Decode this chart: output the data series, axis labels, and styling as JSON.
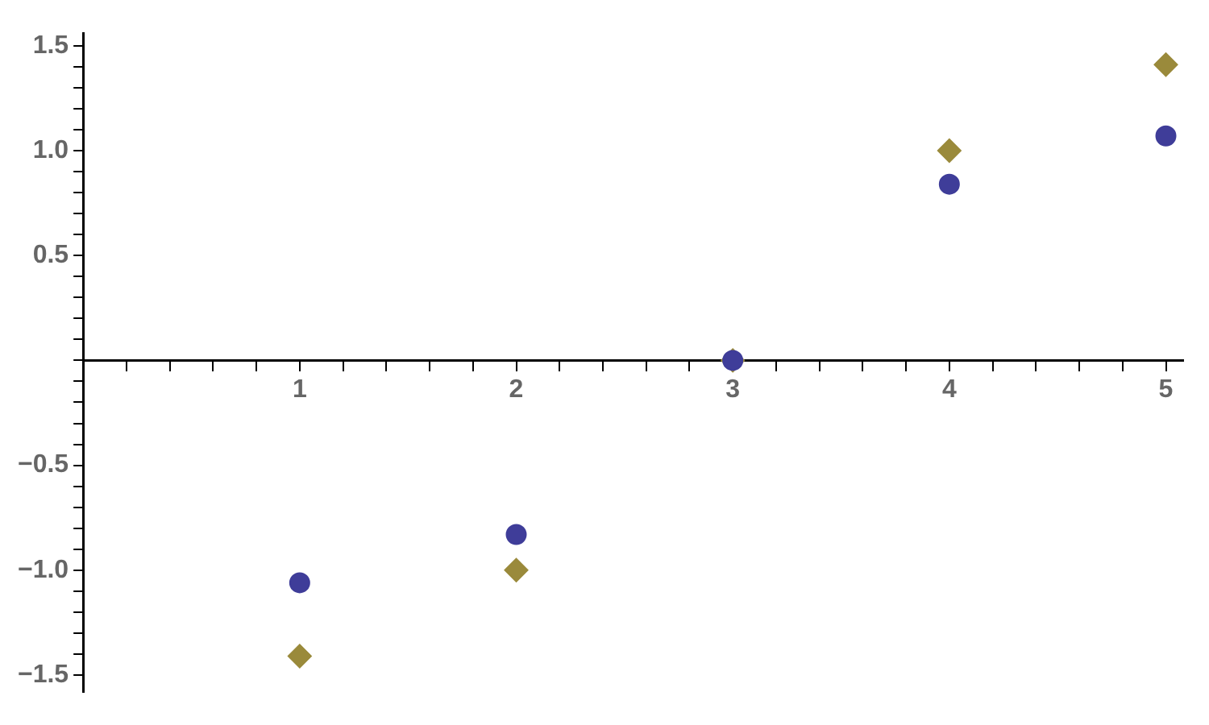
{
  "chart_data": {
    "type": "scatter",
    "x": [
      1,
      2,
      3,
      4,
      5
    ],
    "series": [
      {
        "color": "#3f3d99",
        "marker": "circle",
        "values": [
          -1.06,
          -0.83,
          0,
          0.84,
          1.07
        ]
      },
      {
        "color": "#9a8a3b",
        "marker": "diamond",
        "values": [
          -1.41,
          -1,
          0,
          1,
          1.41
        ]
      }
    ],
    "xlim": [
      0,
      5.08
    ],
    "ylim": [
      -1.58,
      1.56
    ],
    "xticks": [
      {
        "value": 0.2,
        "label": null
      },
      {
        "value": 0.4,
        "label": null
      },
      {
        "value": 0.6,
        "label": null
      },
      {
        "value": 0.8,
        "label": null
      },
      1,
      {
        "value": 1.2,
        "label": null
      },
      {
        "value": 1.4,
        "label": null
      },
      {
        "value": 1.6,
        "label": null
      },
      {
        "value": 1.8,
        "label": null
      },
      2,
      {
        "value": 2.2,
        "label": null
      },
      {
        "value": 2.4,
        "label": null
      },
      {
        "value": 2.6,
        "label": null
      },
      {
        "value": 2.8,
        "label": null
      },
      3,
      {
        "value": 3.2,
        "label": null
      },
      {
        "value": 3.4,
        "label": null
      },
      {
        "value": 3.6,
        "label": null
      },
      {
        "value": 3.8,
        "label": null
      },
      4,
      {
        "value": 4.2,
        "label": null
      },
      {
        "value": 4.4,
        "label": null
      },
      {
        "value": 4.6,
        "label": null
      },
      {
        "value": 4.8,
        "label": null
      },
      5
    ],
    "yticks": [
      {
        "value": -1.5,
        "label": "−1.5"
      },
      {
        "value": -1.4,
        "label": null
      },
      {
        "value": -1.3,
        "label": null
      },
      {
        "value": -1.2,
        "label": null
      },
      {
        "value": -1.1,
        "label": null
      },
      {
        "value": -1.0,
        "label": "−1.0"
      },
      {
        "value": -0.9,
        "label": null
      },
      {
        "value": -0.8,
        "label": null
      },
      {
        "value": -0.7,
        "label": null
      },
      {
        "value": -0.6,
        "label": null
      },
      {
        "value": -0.5,
        "label": "−0.5"
      },
      {
        "value": -0.4,
        "label": null
      },
      {
        "value": -0.3,
        "label": null
      },
      {
        "value": -0.2,
        "label": null
      },
      {
        "value": -0.1,
        "label": null
      },
      {
        "value": 0,
        "label": null
      },
      {
        "value": 0.1,
        "label": null
      },
      {
        "value": 0.2,
        "label": null
      },
      {
        "value": 0.3,
        "label": null
      },
      {
        "value": 0.4,
        "label": null
      },
      0.5,
      {
        "value": 0.6,
        "label": null
      },
      {
        "value": 0.7,
        "label": null
      },
      {
        "value": 0.8,
        "label": null
      },
      {
        "value": 0.9,
        "label": null
      },
      {
        "value": 1.0,
        "label": "1.0"
      },
      {
        "value": 1.1,
        "label": null
      },
      {
        "value": 1.2,
        "label": null
      },
      {
        "value": 1.3,
        "label": null
      },
      {
        "value": 1.4,
        "label": null
      },
      1.5
    ],
    "grid": false,
    "legend": false
  }
}
